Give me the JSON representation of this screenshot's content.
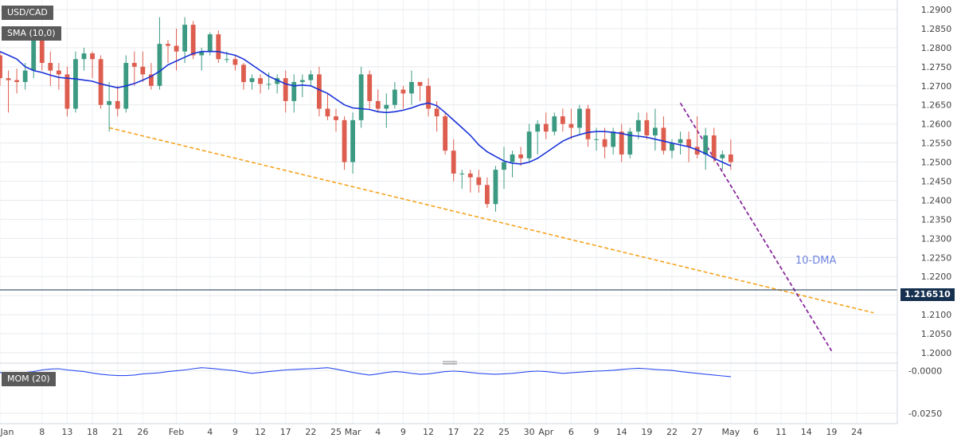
{
  "chart_data": [
    {
      "type": "candlestick",
      "symbol": "USD/CAD",
      "price_label": "1.216510",
      "last_price": 1.21651,
      "indicator_label": "SMA (10,0)",
      "annotation": "10-DMA",
      "ylim": [
        1.1975,
        1.2925
      ],
      "y_ticks": [
        "1.2900",
        "1.2850",
        "1.2800",
        "1.2750",
        "1.2700",
        "1.2650",
        "1.2600",
        "1.2550",
        "1.2500",
        "1.2450",
        "1.2400",
        "1.2350",
        "1.2300",
        "1.2250",
        "1.2200",
        "1.2150",
        "1.2100",
        "1.2050",
        "1.2000"
      ],
      "x_tick_labels": [
        {
          "label": "Jan",
          "i": 0
        },
        {
          "label": "8",
          "i": 5
        },
        {
          "label": "13",
          "i": 8
        },
        {
          "label": "18",
          "i": 11
        },
        {
          "label": "21",
          "i": 14
        },
        {
          "label": "26",
          "i": 17
        },
        {
          "label": "Feb",
          "i": 21
        },
        {
          "label": "4",
          "i": 25
        },
        {
          "label": "9",
          "i": 28
        },
        {
          "label": "12",
          "i": 31
        },
        {
          "label": "17",
          "i": 34
        },
        {
          "label": "22",
          "i": 37
        },
        {
          "label": "25",
          "i": 40
        },
        {
          "label": "Mar",
          "i": 42
        },
        {
          "label": "4",
          "i": 45
        },
        {
          "label": "9",
          "i": 48
        },
        {
          "label": "12",
          "i": 51
        },
        {
          "label": "17",
          "i": 54
        },
        {
          "label": "22",
          "i": 57
        },
        {
          "label": "25",
          "i": 60
        },
        {
          "label": "30",
          "i": 63
        },
        {
          "label": "Apr",
          "i": 65
        },
        {
          "label": "6",
          "i": 68
        },
        {
          "label": "9",
          "i": 71
        },
        {
          "label": "14",
          "i": 74
        },
        {
          "label": "19",
          "i": 77
        },
        {
          "label": "22",
          "i": 80
        },
        {
          "label": "27",
          "i": 83
        },
        {
          "label": "May",
          "i": 87
        },
        {
          "label": "6",
          "i": 90
        },
        {
          "label": "11",
          "i": 93
        },
        {
          "label": "14",
          "i": 96
        },
        {
          "label": "19",
          "i": 99
        },
        {
          "label": "24",
          "i": 102
        }
      ],
      "candles": [
        [
          1.278,
          1.279,
          1.27,
          1.272
        ],
        [
          1.272,
          1.274,
          1.263,
          1.2715
        ],
        [
          1.2715,
          1.2745,
          1.268,
          1.271
        ],
        [
          1.271,
          1.276,
          1.269,
          1.274
        ],
        [
          1.274,
          1.2845,
          1.272,
          1.2825
        ],
        [
          1.2825,
          1.2835,
          1.274,
          1.276
        ],
        [
          1.276,
          1.279,
          1.27,
          1.274
        ],
        [
          1.274,
          1.276,
          1.269,
          1.273
        ],
        [
          1.273,
          1.275,
          1.262,
          1.264
        ],
        [
          1.264,
          1.279,
          1.263,
          1.277
        ],
        [
          1.277,
          1.28,
          1.274,
          1.2785
        ],
        [
          1.2785,
          1.279,
          1.272,
          1.277
        ],
        [
          1.277,
          1.278,
          1.264,
          1.265
        ],
        [
          1.265,
          1.271,
          1.258,
          1.266
        ],
        [
          1.266,
          1.27,
          1.262,
          1.264
        ],
        [
          1.264,
          1.278,
          1.263,
          1.276
        ],
        [
          1.276,
          1.279,
          1.27,
          1.275
        ],
        [
          1.275,
          1.279,
          1.271,
          1.273
        ],
        [
          1.273,
          1.276,
          1.269,
          1.27
        ],
        [
          1.27,
          1.288,
          1.269,
          1.281
        ],
        [
          1.281,
          1.282,
          1.276,
          1.2805
        ],
        [
          1.2805,
          1.285,
          1.274,
          1.279
        ],
        [
          1.279,
          1.288,
          1.276,
          1.286
        ],
        [
          1.286,
          1.287,
          1.277,
          1.278
        ],
        [
          1.278,
          1.28,
          1.274,
          1.279
        ],
        [
          1.279,
          1.284,
          1.278,
          1.2835
        ],
        [
          1.2835,
          1.2845,
          1.276,
          1.277
        ],
        [
          1.277,
          1.279,
          1.276,
          1.277
        ],
        [
          1.277,
          1.278,
          1.274,
          1.2755
        ],
        [
          1.2755,
          1.276,
          1.269,
          1.271
        ],
        [
          1.271,
          1.273,
          1.269,
          1.272
        ],
        [
          1.272,
          1.273,
          1.268,
          1.2705
        ],
        [
          1.2705,
          1.2735,
          1.269,
          1.2705
        ],
        [
          1.2705,
          1.273,
          1.268,
          1.272
        ],
        [
          1.272,
          1.274,
          1.263,
          1.266
        ],
        [
          1.266,
          1.273,
          1.263,
          1.271
        ],
        [
          1.271,
          1.273,
          1.267,
          1.2715
        ],
        [
          1.2715,
          1.274,
          1.27,
          1.273
        ],
        [
          1.273,
          1.275,
          1.262,
          1.264
        ],
        [
          1.264,
          1.268,
          1.261,
          1.262
        ],
        [
          1.262,
          1.264,
          1.258,
          1.261
        ],
        [
          1.261,
          1.262,
          1.248,
          1.25
        ],
        [
          1.25,
          1.263,
          1.247,
          1.261
        ],
        [
          1.261,
          1.275,
          1.259,
          1.273
        ],
        [
          1.273,
          1.274,
          1.264,
          1.266
        ],
        [
          1.266,
          1.269,
          1.263,
          1.264
        ],
        [
          1.264,
          1.268,
          1.259,
          1.265
        ],
        [
          1.265,
          1.271,
          1.264,
          1.269
        ],
        [
          1.269,
          1.27,
          1.264,
          1.268
        ],
        [
          1.268,
          1.274,
          1.265,
          1.271
        ],
        [
          1.271,
          1.271,
          1.266,
          1.27
        ],
        [
          1.27,
          1.272,
          1.262,
          1.264
        ],
        [
          1.264,
          1.266,
          1.258,
          1.262
        ],
        [
          1.262,
          1.263,
          1.252,
          1.253
        ],
        [
          1.253,
          1.256,
          1.245,
          1.247
        ],
        [
          1.247,
          1.248,
          1.243,
          1.247
        ],
        [
          1.247,
          1.248,
          1.242,
          1.246
        ],
        [
          1.246,
          1.248,
          1.242,
          1.244
        ],
        [
          1.244,
          1.246,
          1.238,
          1.239
        ],
        [
          1.239,
          1.249,
          1.237,
          1.248
        ],
        [
          1.248,
          1.254,
          1.243,
          1.25
        ],
        [
          1.25,
          1.253,
          1.246,
          1.252
        ],
        [
          1.252,
          1.254,
          1.249,
          1.251
        ],
        [
          1.251,
          1.26,
          1.25,
          1.258
        ],
        [
          1.258,
          1.261,
          1.252,
          1.26
        ],
        [
          1.26,
          1.263,
          1.256,
          1.258
        ],
        [
          1.258,
          1.263,
          1.257,
          1.262
        ],
        [
          1.262,
          1.264,
          1.258,
          1.26
        ],
        [
          1.26,
          1.264,
          1.256,
          1.259
        ],
        [
          1.259,
          1.265,
          1.257,
          1.264
        ],
        [
          1.264,
          1.265,
          1.254,
          1.256
        ],
        [
          1.256,
          1.259,
          1.253,
          1.256
        ],
        [
          1.256,
          1.259,
          1.251,
          1.254
        ],
        [
          1.254,
          1.259,
          1.252,
          1.258
        ],
        [
          1.258,
          1.26,
          1.25,
          1.252
        ],
        [
          1.252,
          1.259,
          1.251,
          1.258
        ],
        [
          1.258,
          1.263,
          1.256,
          1.261
        ],
        [
          1.261,
          1.263,
          1.256,
          1.257
        ],
        [
          1.257,
          1.264,
          1.253,
          1.259
        ],
        [
          1.259,
          1.262,
          1.252,
          1.253
        ],
        [
          1.253,
          1.256,
          1.251,
          1.255
        ],
        [
          1.255,
          1.258,
          1.252,
          1.256
        ],
        [
          1.256,
          1.258,
          1.25,
          1.254
        ],
        [
          1.254,
          1.262,
          1.251,
          1.252
        ],
        [
          1.252,
          1.259,
          1.248,
          1.257
        ],
        [
          1.257,
          1.259,
          1.25,
          1.251
        ],
        [
          1.251,
          1.253,
          1.248,
          1.252
        ],
        [
          1.252,
          1.256,
          1.248,
          1.25
        ]
      ],
      "sma10": [
        1.279,
        1.278,
        1.277,
        1.275,
        1.274,
        1.2735,
        1.2728,
        1.2722,
        1.272,
        1.2718,
        1.2715,
        1.2712,
        1.2705,
        1.27,
        1.2695,
        1.27,
        1.2706,
        1.2715,
        1.2725,
        1.2738,
        1.2755,
        1.2765,
        1.2775,
        1.2785,
        1.279,
        1.279,
        1.279,
        1.2785,
        1.278,
        1.277,
        1.2755,
        1.274,
        1.2725,
        1.2715,
        1.2705,
        1.27,
        1.2702,
        1.27,
        1.269,
        1.268,
        1.2665,
        1.265,
        1.2642,
        1.264,
        1.2638,
        1.2632,
        1.263,
        1.2632,
        1.2636,
        1.2642,
        1.265,
        1.2655,
        1.2648,
        1.263,
        1.261,
        1.259,
        1.257,
        1.2545,
        1.2527,
        1.2515,
        1.2503,
        1.2497,
        1.2495,
        1.25,
        1.251,
        1.2525,
        1.254,
        1.2555,
        1.2565,
        1.2572,
        1.2578,
        1.258,
        1.258,
        1.2578,
        1.2575,
        1.257,
        1.2568,
        1.2565,
        1.256,
        1.2555,
        1.255,
        1.2545,
        1.254,
        1.2532,
        1.2522,
        1.251,
        1.25,
        1.249
      ],
      "lines": {
        "orange_support": {
          "from": [
            13,
            1.259
          ],
          "to": [
            104,
            1.2105
          ]
        },
        "purple_resistance": {
          "from": [
            81,
            1.2655
          ],
          "to": [
            99,
            1.2005
          ]
        }
      }
    },
    {
      "type": "line",
      "series_label": "MOM (20)",
      "ylim": [
        -0.031,
        0.004
      ],
      "y_ticks": [
        "-0.0000",
        "-0.0250"
      ],
      "values": [
        -0.001,
        -0.0015,
        -0.0014,
        -0.001,
        -0.0005,
        0.0005,
        0.001,
        0.0012,
        0.0005,
        0.0,
        -0.0005,
        -0.0013,
        -0.002,
        -0.0025,
        -0.0028,
        -0.0028,
        -0.0025,
        -0.0018,
        -0.0015,
        -0.0012,
        -0.0005,
        0.0,
        0.0005,
        0.0012,
        0.0018,
        0.0015,
        0.001,
        0.0005,
        0.0,
        -0.0008,
        -0.0015,
        -0.001,
        -0.0005,
        0.0,
        0.0005,
        0.0008,
        0.001,
        0.0012,
        0.0015,
        0.0018,
        0.001,
        0.0,
        -0.001,
        -0.0018,
        -0.0025,
        -0.0018,
        -0.001,
        -0.0005,
        -0.0008,
        -0.0015,
        -0.002,
        -0.0018,
        -0.0012,
        -0.0005,
        -0.0002,
        -0.0005,
        -0.001,
        -0.0015,
        -0.0018,
        -0.002,
        -0.0018,
        -0.0015,
        -0.001,
        -0.0005,
        -0.0002,
        -0.0005,
        -0.001,
        -0.0015,
        -0.0012,
        -0.0008,
        -0.0005,
        -0.0002,
        0.0,
        0.0003,
        0.0008,
        0.0012,
        0.0015,
        0.0012,
        0.0008,
        0.0005,
        0.0002,
        -0.0005,
        -0.001,
        -0.0015,
        -0.002,
        -0.0025,
        -0.003,
        -0.0034
      ]
    }
  ]
}
